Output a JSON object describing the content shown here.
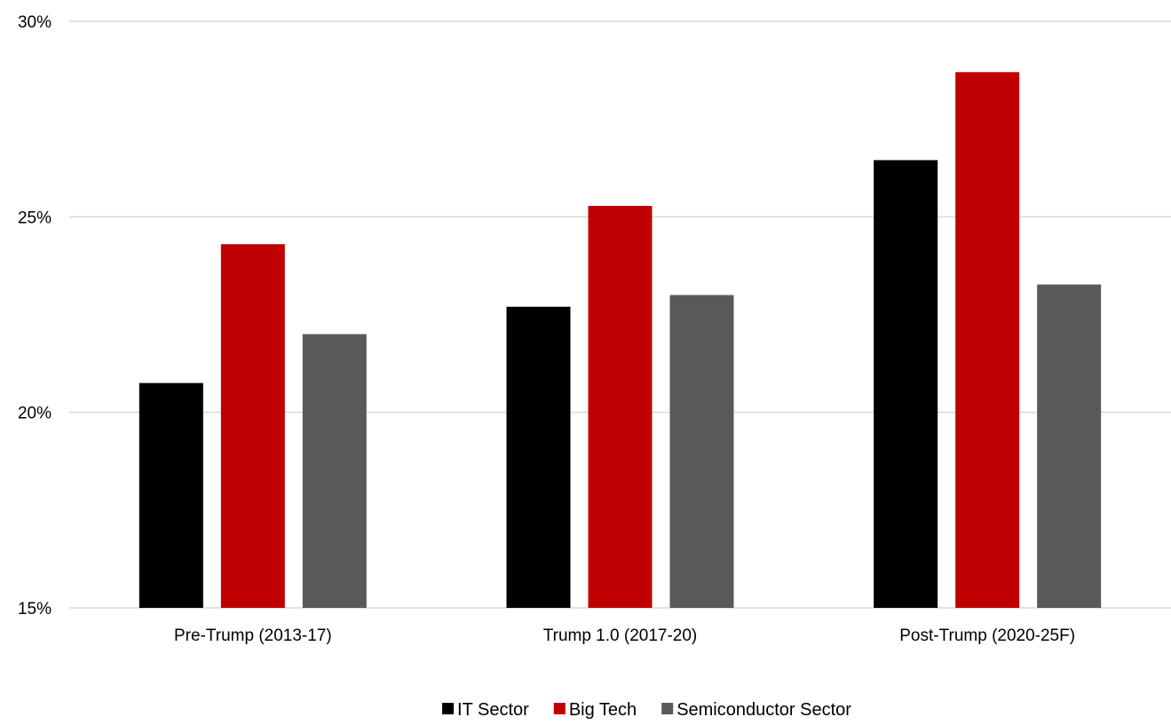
{
  "chart_data": {
    "type": "bar",
    "categories": [
      "Pre-Trump (2013-17)",
      "Trump 1.0 (2017-20)",
      "Post-Trump (2020-25F)"
    ],
    "series": [
      {
        "name": "IT Sector",
        "color": "#000000",
        "values": [
          20.75,
          22.7,
          26.45
        ]
      },
      {
        "name": "Big Tech",
        "color": "#c00000",
        "values": [
          24.3,
          25.28,
          28.7
        ]
      },
      {
        "name": "Semiconductor Sector",
        "color": "#595959",
        "values": [
          22.0,
          23.0,
          23.27
        ]
      }
    ],
    "ylim": [
      15,
      30
    ],
    "yticks": [
      "15%",
      "20%",
      "25%",
      "30%"
    ],
    "ytick_values": [
      15,
      20,
      25,
      30
    ],
    "grid": true,
    "legend_position": "bottom",
    "title": "",
    "xlabel": "",
    "ylabel": ""
  }
}
